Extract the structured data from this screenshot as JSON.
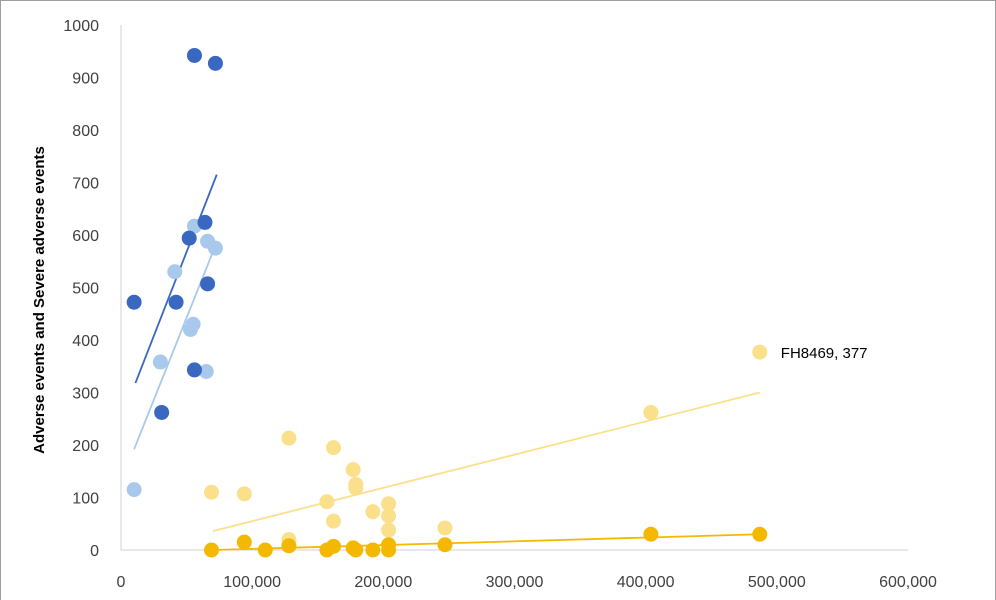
{
  "chart_data": {
    "type": "scatter",
    "title": "",
    "xlabel": "",
    "ylabel": "Adverse events and Severe adverse events",
    "xlim": [
      0,
      600000
    ],
    "ylim": [
      0,
      1000
    ],
    "x_ticks": [
      "0",
      "100,000",
      "200,000",
      "300,000",
      "400,000",
      "500,000",
      "600,000"
    ],
    "y_ticks": [
      "0",
      "100",
      "200",
      "300",
      "400",
      "500",
      "600",
      "700",
      "800",
      "900",
      "1000"
    ],
    "x_tick_values": [
      0,
      100000,
      200000,
      300000,
      400000,
      500000,
      600000
    ],
    "y_tick_values": [
      0,
      100,
      200,
      300,
      400,
      500,
      600,
      700,
      800,
      900,
      1000
    ],
    "grid": false,
    "series": [
      {
        "color": "#a9c9ec",
        "points": [
          {
            "x": 10000,
            "y": 115
          },
          {
            "x": 30000,
            "y": 358
          },
          {
            "x": 41000,
            "y": 530
          },
          {
            "x": 53000,
            "y": 420
          },
          {
            "x": 55000,
            "y": 430
          },
          {
            "x": 56000,
            "y": 617
          },
          {
            "x": 65000,
            "y": 340
          },
          {
            "x": 66000,
            "y": 588
          },
          {
            "x": 72000,
            "y": 575
          }
        ],
        "trend": {
          "x": [
            10000,
            72000
          ],
          "y": [
            192,
            580
          ]
        }
      },
      {
        "color": "#3a68c0",
        "points": [
          {
            "x": 10000,
            "y": 472
          },
          {
            "x": 31000,
            "y": 262
          },
          {
            "x": 42000,
            "y": 472
          },
          {
            "x": 52000,
            "y": 594
          },
          {
            "x": 56000,
            "y": 343
          },
          {
            "x": 56000,
            "y": 942
          },
          {
            "x": 64000,
            "y": 624
          },
          {
            "x": 66000,
            "y": 507
          },
          {
            "x": 72000,
            "y": 927
          }
        ],
        "trend": {
          "x": [
            11000,
            73000
          ],
          "y": [
            318,
            715
          ]
        }
      },
      {
        "color": "#fbe08c",
        "points": [
          {
            "x": 69000,
            "y": 110
          },
          {
            "x": 94000,
            "y": 107
          },
          {
            "x": 128000,
            "y": 213
          },
          {
            "x": 128000,
            "y": 20
          },
          {
            "x": 157000,
            "y": 92
          },
          {
            "x": 162000,
            "y": 195
          },
          {
            "x": 162000,
            "y": 55
          },
          {
            "x": 177000,
            "y": 153
          },
          {
            "x": 179000,
            "y": 125
          },
          {
            "x": 179000,
            "y": 118
          },
          {
            "x": 192000,
            "y": 73
          },
          {
            "x": 204000,
            "y": 88
          },
          {
            "x": 204000,
            "y": 65
          },
          {
            "x": 204000,
            "y": 38
          },
          {
            "x": 247000,
            "y": 42
          },
          {
            "x": 404000,
            "y": 262
          },
          {
            "x": 487000,
            "y": 377
          }
        ],
        "trend": {
          "x": [
            70000,
            487000
          ],
          "y": [
            36,
            300
          ]
        }
      },
      {
        "color": "#f5b800",
        "points": [
          {
            "x": 69000,
            "y": 0
          },
          {
            "x": 94000,
            "y": 15
          },
          {
            "x": 110000,
            "y": 0
          },
          {
            "x": 128000,
            "y": 8
          },
          {
            "x": 157000,
            "y": 0
          },
          {
            "x": 162000,
            "y": 7
          },
          {
            "x": 177000,
            "y": 4
          },
          {
            "x": 179000,
            "y": 0
          },
          {
            "x": 192000,
            "y": 0
          },
          {
            "x": 204000,
            "y": 10
          },
          {
            "x": 204000,
            "y": 0
          },
          {
            "x": 247000,
            "y": 10
          },
          {
            "x": 404000,
            "y": 30
          },
          {
            "x": 487000,
            "y": 30
          }
        ],
        "trend": {
          "x": [
            70000,
            487000
          ],
          "y": [
            0,
            30
          ]
        }
      }
    ],
    "annotations": [
      {
        "text": "FH8469, 377",
        "x": 487000,
        "y": 377
      }
    ]
  }
}
